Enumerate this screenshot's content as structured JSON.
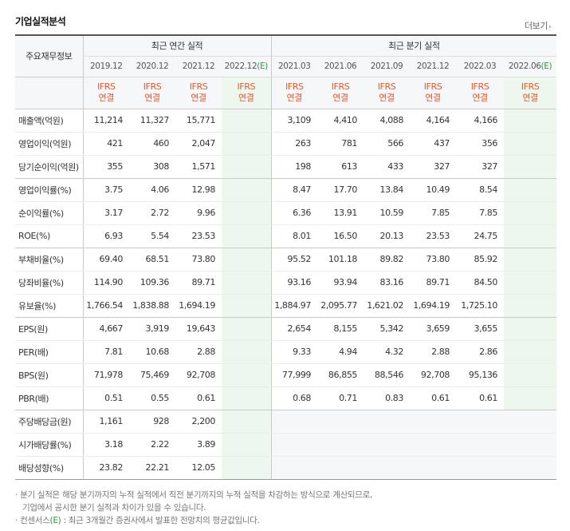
{
  "title": "기업실적분석",
  "more_label": "더보기",
  "more_arrow": "›",
  "header": {
    "corner": "주요재무정보",
    "annual_group": "최근 연간 실적",
    "quarter_group": "최근 분기 실적",
    "annual_periods": [
      {
        "label": "2019.12",
        "est": ""
      },
      {
        "label": "2020.12",
        "est": ""
      },
      {
        "label": "2021.12",
        "est": ""
      },
      {
        "label": "2022.12",
        "est": "(E)"
      }
    ],
    "quarter_periods": [
      {
        "label": "2021.03",
        "est": ""
      },
      {
        "label": "2021.06",
        "est": ""
      },
      {
        "label": "2021.09",
        "est": ""
      },
      {
        "label": "2021.12",
        "est": ""
      },
      {
        "label": "2022.03",
        "est": ""
      },
      {
        "label": "2022.06",
        "est": "(E)"
      }
    ],
    "std_line1": "IFRS",
    "std_line2": "연결"
  },
  "rows": [
    {
      "label": "매출액(억원)",
      "annual": [
        "11,214",
        "11,327",
        "15,771",
        ""
      ],
      "quarter": [
        "3,109",
        "4,410",
        "4,088",
        "4,164",
        "4,166",
        ""
      ]
    },
    {
      "label": "영업이익(억원)",
      "annual": [
        "421",
        "460",
        "2,047",
        ""
      ],
      "quarter": [
        "263",
        "781",
        "566",
        "437",
        "356",
        ""
      ]
    },
    {
      "label": "당기순이익(억원)",
      "annual": [
        "355",
        "308",
        "1,571",
        ""
      ],
      "quarter": [
        "198",
        "613",
        "433",
        "327",
        "327",
        ""
      ]
    },
    {
      "label": "영업이익률(%)",
      "annual": [
        "3.75",
        "4.06",
        "12.98",
        ""
      ],
      "quarter": [
        "8.47",
        "17.70",
        "13.84",
        "10.49",
        "8.54",
        ""
      ]
    },
    {
      "label": "순이익률(%)",
      "annual": [
        "3.17",
        "2.72",
        "9.96",
        ""
      ],
      "quarter": [
        "6.36",
        "13.91",
        "10.59",
        "7.85",
        "7.85",
        ""
      ]
    },
    {
      "label": "ROE(%)",
      "annual": [
        "6.93",
        "5.54",
        "23.53",
        ""
      ],
      "quarter": [
        "8.01",
        "16.50",
        "20.13",
        "23.53",
        "24.75",
        ""
      ]
    },
    {
      "label": "부채비율(%)",
      "annual": [
        "69.40",
        "68.51",
        "73.80",
        ""
      ],
      "quarter": [
        "95.52",
        "101.18",
        "89.82",
        "73.80",
        "85.92",
        ""
      ]
    },
    {
      "label": "당좌비율(%)",
      "annual": [
        "114.90",
        "109.36",
        "89.71",
        ""
      ],
      "quarter": [
        "93.16",
        "93.94",
        "83.16",
        "89.71",
        "84.50",
        ""
      ]
    },
    {
      "label": "유보율(%)",
      "annual": [
        "1,766.54",
        "1,838.88",
        "1,694.19",
        ""
      ],
      "quarter": [
        "1,884.97",
        "2,095.77",
        "1,621.02",
        "1,694.19",
        "1,725.10",
        ""
      ]
    },
    {
      "label": "EPS(원)",
      "annual": [
        "4,667",
        "3,919",
        "19,643",
        ""
      ],
      "quarter": [
        "2,654",
        "8,155",
        "5,342",
        "3,659",
        "3,655",
        ""
      ]
    },
    {
      "label": "PER(배)",
      "annual": [
        "7.81",
        "10.68",
        "2.88",
        ""
      ],
      "quarter": [
        "9.33",
        "4.94",
        "4.32",
        "2.88",
        "2.86",
        ""
      ]
    },
    {
      "label": "BPS(원)",
      "annual": [
        "71,978",
        "75,469",
        "92,708",
        ""
      ],
      "quarter": [
        "77,999",
        "86,855",
        "88,546",
        "92,708",
        "95,136",
        ""
      ]
    },
    {
      "label": "PBR(배)",
      "annual": [
        "0.51",
        "0.55",
        "0.61",
        ""
      ],
      "quarter": [
        "0.68",
        "0.71",
        "0.83",
        "0.61",
        "0.61",
        ""
      ]
    },
    {
      "label": "주당배당금(원)",
      "annual": [
        "1,161",
        "928",
        "2,200",
        ""
      ],
      "quarter": [
        "",
        "",
        "",
        "",
        "",
        ""
      ]
    },
    {
      "label": "시가배당률(%)",
      "annual": [
        "3.18",
        "2.22",
        "3.89",
        ""
      ],
      "quarter": [
        "",
        "",
        "",
        "",
        "",
        ""
      ]
    },
    {
      "label": "배당성향(%)",
      "annual": [
        "23.82",
        "22.21",
        "12.05",
        ""
      ],
      "quarter": [
        "",
        "",
        "",
        "",
        "",
        ""
      ]
    }
  ],
  "notes": {
    "line1": "분기 실적은 해당 분기까지의 누적 실적에서 직전 분기까지의 누적 실적을 차감하는 방식으로 계산되므로,",
    "line2": "기업에서 공시한 분기 실적과 차이가 있을 수 있습니다.",
    "line3_pre": "컨센서스",
    "line3_mark": "(E)",
    "line3_post": ": 최근 3개월간 증권사에서 발표한 전망치의 평균값입니다."
  },
  "colors": {
    "ifrs": "#e8562a",
    "estimate": "#2b9a3f",
    "estimate_bg": "#eef7ee",
    "header_bg": "#f6f7f9"
  }
}
